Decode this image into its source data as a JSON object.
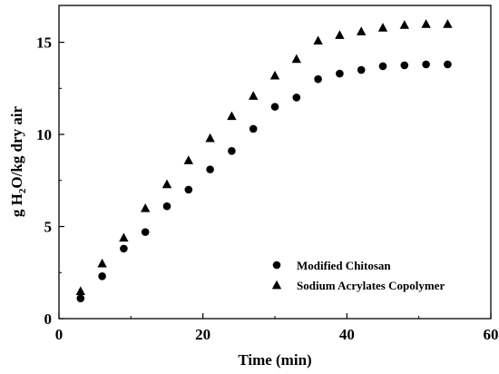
{
  "chart_data": {
    "type": "scatter",
    "xlabel": "Time (min)",
    "ylabel": {
      "pre": "g H",
      "sub": "2",
      "post": "O/kg dry air"
    },
    "xlim": [
      0,
      60
    ],
    "ylim": [
      0,
      17
    ],
    "xticks": [
      0,
      20,
      40,
      60
    ],
    "yticks": [
      0,
      5,
      10,
      15
    ],
    "grid": false,
    "legend_position": "bottom-right",
    "series": [
      {
        "name": "Modified Chitosan",
        "marker": "circle",
        "color": "#000000",
        "x": [
          3,
          6,
          9,
          12,
          15,
          18,
          21,
          24,
          27,
          30,
          33,
          36,
          39,
          42,
          45,
          48,
          51,
          54
        ],
        "y": [
          1.1,
          2.3,
          3.8,
          4.7,
          6.1,
          7.0,
          8.1,
          9.1,
          10.3,
          11.5,
          12.0,
          13.0,
          13.3,
          13.5,
          13.7,
          13.75,
          13.8,
          13.8
        ]
      },
      {
        "name": "Sodium Acrylates Copolymer",
        "marker": "triangle",
        "color": "#000000",
        "x": [
          3,
          6,
          9,
          12,
          15,
          18,
          21,
          24,
          27,
          30,
          33,
          36,
          39,
          42,
          45,
          48,
          51,
          54
        ],
        "y": [
          1.5,
          3.0,
          4.4,
          6.0,
          7.3,
          8.6,
          9.8,
          11.0,
          12.1,
          13.2,
          14.1,
          15.1,
          15.4,
          15.6,
          15.8,
          15.95,
          16.0,
          16.0
        ]
      }
    ]
  }
}
